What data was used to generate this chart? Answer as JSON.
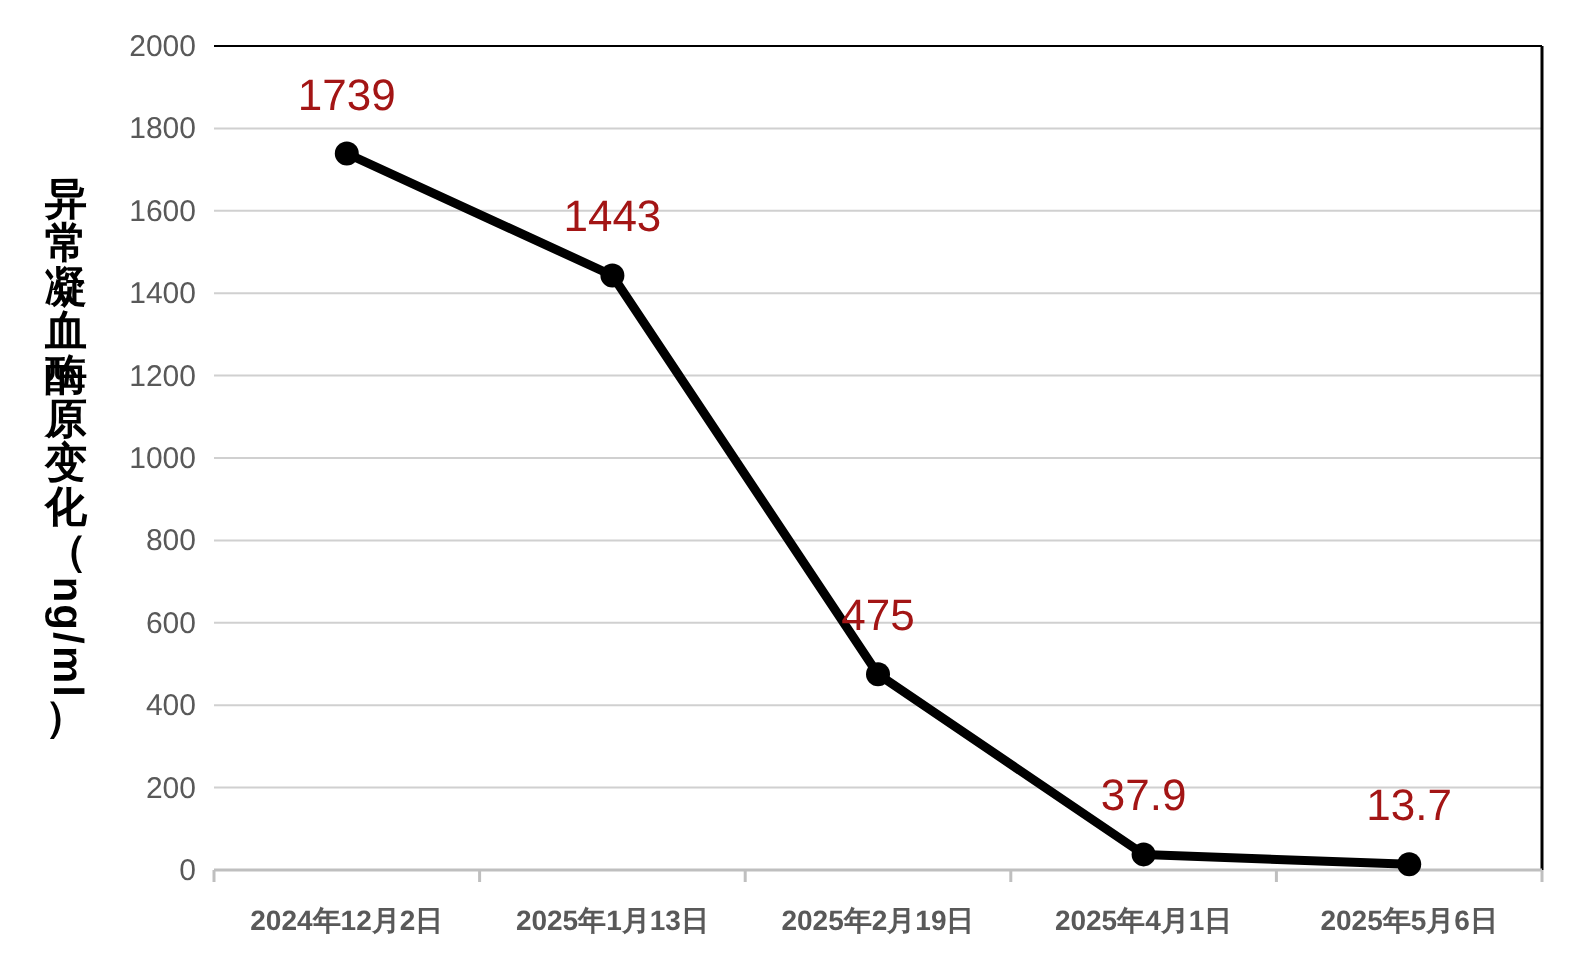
{
  "chart_data": {
    "type": "line",
    "ylabel": "异常凝血酶原变化（ng/ml）",
    "categories": [
      "2024年12月2日",
      "2025年1月13日",
      "2025年2月19日",
      "2025年4月1日",
      "2025年5月6日"
    ],
    "series": [
      {
        "color": "#000000",
        "values": [
          1739,
          1443,
          475,
          37.9,
          13.7
        ]
      }
    ],
    "ylim": [
      0,
      2000
    ],
    "yticks": [
      0,
      200,
      400,
      600,
      800,
      1000,
      1200,
      1400,
      1600,
      1800,
      2000
    ],
    "grid": "y",
    "marker": "circle",
    "line_style": "solid",
    "data_labels": true
  }
}
